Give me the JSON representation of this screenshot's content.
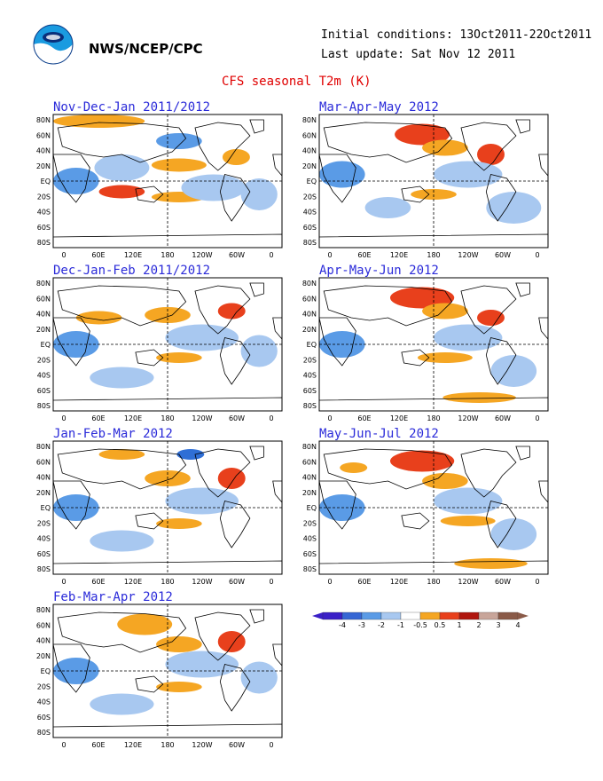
{
  "header": {
    "agency": "NWS/NCEP/CPC",
    "initial_conditions": "Initial conditions: 13Oct2011-22Oct2011",
    "last_update": "Last update: Sat Nov 12 2011",
    "title": "CFS seasonal T2m (K)"
  },
  "colors": {
    "warm1": "#f5a623",
    "warm2": "#e8401c",
    "warm3": "#b0160e",
    "cool1": "#a8c8f0",
    "cool2": "#5a9be6",
    "cool3": "#2f6fd6",
    "land": "#000000",
    "title": "#2b2bd9",
    "main_title": "#e00000"
  },
  "axes": {
    "lat_labels": [
      "80N",
      "60N",
      "40N",
      "20N",
      "EQ",
      "20S",
      "40S",
      "60S",
      "80S"
    ],
    "lon_labels": [
      "0",
      "60E",
      "120E",
      "180",
      "120W",
      "60W",
      "0"
    ]
  },
  "panels": [
    {
      "title": "Nov-Dec-Jan 2011/2012"
    },
    {
      "title": "Mar-Apr-May 2012"
    },
    {
      "title": "Dec-Jan-Feb 2011/2012"
    },
    {
      "title": "Apr-May-Jun 2012"
    },
    {
      "title": "Jan-Feb-Mar 2012"
    },
    {
      "title": "May-Jun-Jul 2012"
    },
    {
      "title": "Feb-Mar-Apr 2012"
    }
  ],
  "colorbar": {
    "labels": [
      "-4",
      "-3",
      "-2",
      "-1",
      "-0.5",
      "0.5",
      "1",
      "2",
      "3",
      "4"
    ],
    "colors": [
      "#3a1fc7",
      "#3566d4",
      "#5a9be6",
      "#a8c8f0",
      "#ffffff",
      "#f5a623",
      "#e8401c",
      "#b0160e",
      "#c8a59a",
      "#8a5a48"
    ]
  }
}
